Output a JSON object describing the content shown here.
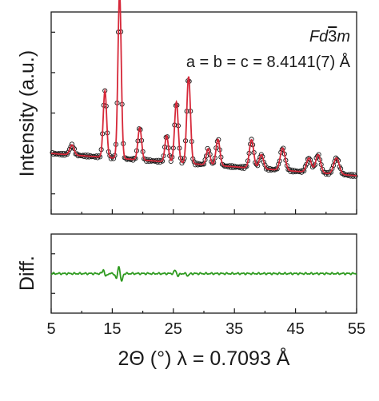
{
  "chart_data": [
    {
      "type": "line",
      "panel": "main",
      "ylabel": "Intensity (a.u.)",
      "xlim": [
        5,
        55
      ],
      "ylim": [
        0,
        100
      ],
      "y_ticks_labeled": false,
      "annotation_spacegroup": {
        "prefix": "Fd",
        "digit": "3",
        "suffix": "m"
      },
      "annotation_lattice": "a = b = c = 8.4141(7) Å",
      "colors": {
        "observed": "#1a1a1a",
        "calculated": "#d62839"
      },
      "peaks": [
        {
          "x": 8.4,
          "height": 5.0,
          "width": 0.35
        },
        {
          "x": 13.8,
          "height": 33.0,
          "width": 0.28
        },
        {
          "x": 16.2,
          "height": 82.0,
          "width": 0.27
        },
        {
          "x": 19.5,
          "height": 16.0,
          "width": 0.3
        },
        {
          "x": 23.9,
          "height": 13.0,
          "width": 0.28
        },
        {
          "x": 25.5,
          "height": 30.0,
          "width": 0.3
        },
        {
          "x": 27.5,
          "height": 43.0,
          "width": 0.3
        },
        {
          "x": 30.7,
          "height": 8.0,
          "width": 0.3
        },
        {
          "x": 32.3,
          "height": 13.0,
          "width": 0.32
        },
        {
          "x": 37.8,
          "height": 14.0,
          "width": 0.35
        },
        {
          "x": 39.4,
          "height": 7.0,
          "width": 0.35
        },
        {
          "x": 42.9,
          "height": 11.0,
          "width": 0.4
        },
        {
          "x": 47.2,
          "height": 7.0,
          "width": 0.4
        },
        {
          "x": 48.7,
          "height": 9.0,
          "width": 0.4
        },
        {
          "x": 51.7,
          "height": 8.0,
          "width": 0.45
        }
      ],
      "background": {
        "at_5": 30.0,
        "at_55": 19.0
      },
      "series": [
        {
          "role": "observed",
          "marker": "open-circle",
          "color": "#1a1a1a"
        },
        {
          "role": "calculated",
          "marker": "line",
          "color": "#d62839"
        }
      ]
    },
    {
      "type": "line",
      "panel": "difference",
      "ylabel": "Diff.",
      "xlabel": "2Θ (°)  λ = 0.7093 Å",
      "xlim": [
        5,
        55
      ],
      "ylim": [
        -1,
        1
      ],
      "x_ticks": [
        5,
        15,
        25,
        35,
        45,
        55
      ],
      "x_tick_labels": [
        "5",
        "15",
        "25",
        "35",
        "45",
        "55"
      ],
      "color": "#2e9a1f",
      "features": [
        {
          "x": 13.6,
          "amp": 0.12
        },
        {
          "x": 13.9,
          "amp": -0.1
        },
        {
          "x": 15.7,
          "amp": -0.14
        },
        {
          "x": 16.1,
          "amp": 0.22
        },
        {
          "x": 16.5,
          "amp": -0.22
        },
        {
          "x": 25.3,
          "amp": 0.08
        },
        {
          "x": 25.8,
          "amp": -0.06
        },
        {
          "x": 27.4,
          "amp": -0.05
        }
      ]
    }
  ]
}
